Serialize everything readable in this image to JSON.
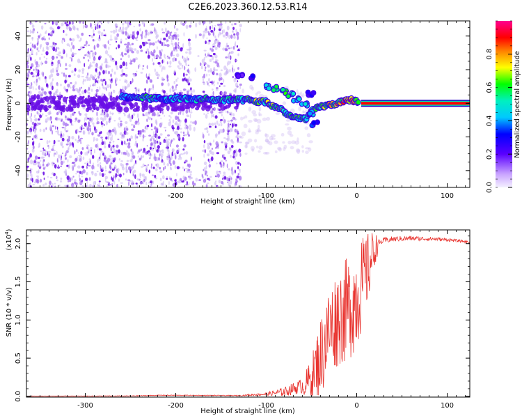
{
  "figure_title": "C2E6.2023.360.12.53.R14",
  "colors": {
    "snr_line": "#e8332e",
    "axis": "#000000",
    "scatter_light": "#c9b2f2",
    "scatter_mid": "#9a5cf0",
    "scatter_dark": "#6a0fe6"
  },
  "chart_data": [
    {
      "type": "heatmap",
      "title": "C2E6.2023.360.12.53.R14",
      "xlabel": "Height of straight line (km)",
      "ylabel": "Frequency (Hz)",
      "xlim": [
        -365,
        125
      ],
      "ylim": [
        -50,
        49
      ],
      "xticks": [
        -300,
        -200,
        -100,
        0,
        100
      ],
      "xtick_labels": [
        "-300",
        "-200",
        "-100",
        "0",
        "100"
      ],
      "yticks": [
        -40,
        -20,
        0,
        20,
        40
      ],
      "ytick_labels": [
        "-40",
        "-20",
        "0",
        "20",
        "40"
      ],
      "colorbar": {
        "label": "Normalized spectral amplitude",
        "range": [
          0,
          1
        ],
        "ticks": [
          0.0,
          0.2,
          0.4,
          0.6,
          0.8
        ],
        "tick_labels": [
          "0.0",
          "0.2",
          "0.4",
          "0.6",
          "0.8"
        ],
        "stops": [
          {
            "v": 0.0,
            "c": "#f4f0ff"
          },
          {
            "v": 0.08,
            "c": "#c9a3ff"
          },
          {
            "v": 0.2,
            "c": "#5a00ff"
          },
          {
            "v": 0.32,
            "c": "#0000ff"
          },
          {
            "v": 0.42,
            "c": "#00c8ff"
          },
          {
            "v": 0.52,
            "c": "#00f0c0"
          },
          {
            "v": 0.62,
            "c": "#00ff00"
          },
          {
            "v": 0.72,
            "c": "#ffff00"
          },
          {
            "v": 0.82,
            "c": "#ff8000"
          },
          {
            "v": 0.9,
            "c": "#ff0000"
          },
          {
            "v": 1.0,
            "c": "#ff0090"
          }
        ]
      },
      "noise_region": {
        "x_from": -365,
        "x_to": -128,
        "gap_from": -182,
        "gap_to": -170
      },
      "signal_track": [
        {
          "x": -260,
          "y": 4,
          "a": 0.38
        },
        {
          "x": -250,
          "y": 3,
          "a": 0.42
        },
        {
          "x": -240,
          "y": 4,
          "a": 0.5
        },
        {
          "x": -230,
          "y": 3,
          "a": 0.55
        },
        {
          "x": -220,
          "y": 3,
          "a": 0.42
        },
        {
          "x": -210,
          "y": 2,
          "a": 0.4
        },
        {
          "x": -200,
          "y": 3,
          "a": 0.45
        },
        {
          "x": -190,
          "y": 3,
          "a": 0.48
        },
        {
          "x": -180,
          "y": 2,
          "a": 0.42
        },
        {
          "x": -170,
          "y": 3,
          "a": 0.55
        },
        {
          "x": -160,
          "y": 2,
          "a": 0.52
        },
        {
          "x": -150,
          "y": 2,
          "a": 0.5
        },
        {
          "x": -140,
          "y": 2,
          "a": 0.55
        },
        {
          "x": -130,
          "y": 2,
          "a": 0.5
        },
        {
          "x": -120,
          "y": 2,
          "a": 0.55
        },
        {
          "x": -110,
          "y": 1,
          "a": 0.6
        },
        {
          "x": -100,
          "y": 1,
          "a": 0.62
        },
        {
          "x": -92,
          "y": -2,
          "a": 0.6
        },
        {
          "x": -84,
          "y": -3,
          "a": 0.62
        },
        {
          "x": -76,
          "y": -7,
          "a": 0.55
        },
        {
          "x": -66,
          "y": -9,
          "a": 0.6
        },
        {
          "x": -56,
          "y": -9,
          "a": 0.52
        },
        {
          "x": -48,
          "y": -4,
          "a": 0.55
        },
        {
          "x": -40,
          "y": -2,
          "a": 0.6
        },
        {
          "x": -30,
          "y": -1,
          "a": 0.68
        },
        {
          "x": -22,
          "y": 0,
          "a": 0.72
        },
        {
          "x": -14,
          "y": 1,
          "a": 0.78
        },
        {
          "x": -6,
          "y": 2,
          "a": 0.82
        },
        {
          "x": 2,
          "y": 1,
          "a": 0.72
        }
      ],
      "branches": [
        {
          "x": -98,
          "y": 10,
          "a": 0.45
        },
        {
          "x": -90,
          "y": 9,
          "a": 0.5
        },
        {
          "x": -82,
          "y": 7,
          "a": 0.55
        },
        {
          "x": -74,
          "y": 5,
          "a": 0.52
        },
        {
          "x": -66,
          "y": 2,
          "a": 0.5
        },
        {
          "x": -58,
          "y": -1,
          "a": 0.45
        },
        {
          "x": -50,
          "y": -6,
          "a": 0.4
        },
        {
          "x": -46,
          "y": -12,
          "a": 0.3
        },
        {
          "x": -115,
          "y": 15,
          "a": 0.28
        },
        {
          "x": -130,
          "y": 16,
          "a": 0.22
        },
        {
          "x": -50,
          "y": 6,
          "a": 0.25
        }
      ],
      "constant_line": {
        "x_from": 5,
        "x_to": 125,
        "y": 0,
        "a": 0.9
      }
    },
    {
      "type": "line",
      "title": "",
      "xlabel": "Height of straight line (km)",
      "ylabel": "SNR (10 * v/v)",
      "y_multiplier": "(x10",
      "y_multiplier_exp": "4",
      "y_multiplier_close": ")",
      "xlim": [
        -365,
        125
      ],
      "ylim": [
        -0.01,
        2.18
      ],
      "xticks": [
        -300,
        -200,
        -100,
        0,
        100
      ],
      "xtick_labels": [
        "-300",
        "-200",
        "-100",
        "0",
        "100"
      ],
      "yticks": [
        0.0,
        0.5,
        1.0,
        1.5,
        2.0
      ],
      "ytick_labels": [
        "0.0",
        "0.5",
        "1.0",
        "1.5",
        "2.0"
      ],
      "series": [
        {
          "name": "SNR",
          "base_curve": [
            {
              "x": -365,
              "y": 0.0
            },
            {
              "x": -250,
              "y": 0.005
            },
            {
              "x": -215,
              "y": 0.015
            },
            {
              "x": -130,
              "y": 0.01
            },
            {
              "x": -100,
              "y": 0.03
            },
            {
              "x": -80,
              "y": 0.06
            },
            {
              "x": -60,
              "y": 0.14
            },
            {
              "x": -50,
              "y": 0.3
            },
            {
              "x": -40,
              "y": 0.62
            },
            {
              "x": -30,
              "y": 1.0
            },
            {
              "x": -20,
              "y": 1.18
            },
            {
              "x": -10,
              "y": 1.28
            },
            {
              "x": 0,
              "y": 1.45
            },
            {
              "x": 10,
              "y": 1.7
            },
            {
              "x": 20,
              "y": 1.98
            },
            {
              "x": 30,
              "y": 2.04
            },
            {
              "x": 40,
              "y": 2.06
            },
            {
              "x": 60,
              "y": 2.07
            },
            {
              "x": 90,
              "y": 2.06
            },
            {
              "x": 110,
              "y": 2.04
            },
            {
              "x": 125,
              "y": 2.02
            }
          ],
          "noise_amplitude": [
            {
              "x": -365,
              "a": 0.004
            },
            {
              "x": -130,
              "a": 0.006
            },
            {
              "x": -100,
              "a": 0.02
            },
            {
              "x": -80,
              "a": 0.06
            },
            {
              "x": -60,
              "a": 0.1
            },
            {
              "x": -50,
              "a": 0.22
            },
            {
              "x": -40,
              "a": 0.45
            },
            {
              "x": -20,
              "a": 0.55
            },
            {
              "x": 0,
              "a": 0.6
            },
            {
              "x": 15,
              "a": 0.35
            },
            {
              "x": 25,
              "a": 0.04
            },
            {
              "x": 125,
              "a": 0.015
            }
          ]
        }
      ]
    }
  ]
}
